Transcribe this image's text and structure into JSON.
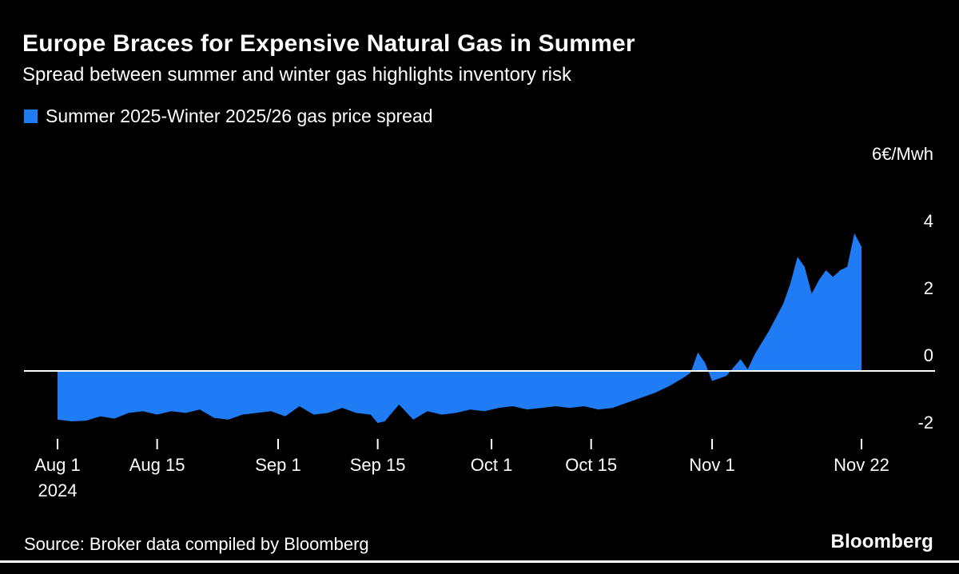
{
  "header": {
    "title": "Europe Braces for Expensive Natural Gas in Summer",
    "subtitle": "Spread between summer and winter gas highlights inventory risk"
  },
  "legend": {
    "label": "Summer 2025-Winter 2025/26 gas price spread",
    "color": "#1f7cf5"
  },
  "footer": {
    "source": "Source: Broker data compiled by Bloomberg",
    "logo": "Bloomberg"
  },
  "chart_data": {
    "type": "area",
    "title": "Europe Braces for Expensive Natural Gas in Summer",
    "subtitle": "Spread between summer and winter gas highlights inventory risk",
    "series_name": "Summer 2025-Winter 2025/26 gas price spread",
    "unit_label": "6€/Mwh",
    "x_start_date": "2024-08-01",
    "x_end_date": "2024-11-22",
    "ylim": [
      -2.6,
      6.2
    ],
    "grid": "off",
    "legend_position": "top-left",
    "y_ticks": [
      {
        "label": "6€/Mwh",
        "value": 6
      },
      {
        "label": "4",
        "value": 4
      },
      {
        "label": "2",
        "value": 2
      },
      {
        "label": "0",
        "value": 0
      },
      {
        "label": "-2",
        "value": -2
      }
    ],
    "x_ticks": [
      {
        "label": "Aug 1",
        "sublabel": "2024",
        "day": 0
      },
      {
        "label": "Aug 15",
        "day": 14
      },
      {
        "label": "Sep 1",
        "day": 31
      },
      {
        "label": "Sep 15",
        "day": 45
      },
      {
        "label": "Oct 1",
        "day": 61
      },
      {
        "label": "Oct 15",
        "day": 75
      },
      {
        "label": "Nov 1",
        "day": 92
      },
      {
        "label": "Nov 22",
        "day": 113
      }
    ],
    "days": [
      0,
      2,
      4,
      6,
      8,
      10,
      12,
      14,
      16,
      18,
      20,
      22,
      24,
      26,
      28,
      30,
      32,
      34,
      36,
      38,
      40,
      42,
      44,
      45,
      46,
      48,
      50,
      52,
      54,
      56,
      58,
      60,
      62,
      64,
      66,
      68,
      70,
      72,
      74,
      76,
      78,
      80,
      82,
      84,
      86,
      88,
      89,
      90,
      91,
      92,
      94,
      96,
      97,
      98,
      100,
      102,
      103,
      104,
      105,
      106,
      107,
      108,
      109,
      110,
      111,
      112,
      113
    ],
    "values": [
      -1.45,
      -1.5,
      -1.48,
      -1.35,
      -1.42,
      -1.25,
      -1.2,
      -1.3,
      -1.2,
      -1.25,
      -1.15,
      -1.4,
      -1.45,
      -1.3,
      -1.25,
      -1.2,
      -1.35,
      -1.05,
      -1.3,
      -1.25,
      -1.1,
      -1.25,
      -1.3,
      -1.55,
      -1.5,
      -1.0,
      -1.45,
      -1.2,
      -1.3,
      -1.25,
      -1.15,
      -1.2,
      -1.1,
      -1.05,
      -1.15,
      -1.1,
      -1.05,
      -1.1,
      -1.05,
      -1.15,
      -1.1,
      -0.95,
      -0.8,
      -0.65,
      -0.45,
      -0.2,
      -0.05,
      0.55,
      0.25,
      -0.3,
      -0.15,
      0.35,
      0.05,
      0.5,
      1.2,
      2.0,
      2.6,
      3.4,
      3.1,
      2.3,
      2.7,
      3.0,
      2.8,
      3.0,
      3.1,
      4.1,
      3.7
    ]
  }
}
